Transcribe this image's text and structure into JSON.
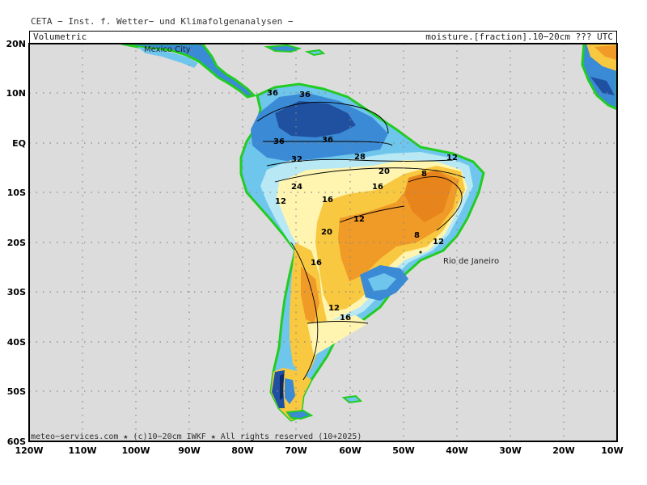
{
  "header": {
    "title": "CETA − Inst. f. Wetter− und Klimafolgenanalysen −",
    "left_label": "Volumetric",
    "right_label": "moisture.[fraction].10−20cm ??? UTC"
  },
  "axes": {
    "lat_ticks": [
      "20N",
      "10N",
      "EQ",
      "10S",
      "20S",
      "30S",
      "40S",
      "50S",
      "60S"
    ],
    "lon_ticks": [
      "120W",
      "110W",
      "100W",
      "90W",
      "80W",
      "70W",
      "60W",
      "50W",
      "40W",
      "30W",
      "20W",
      "10W"
    ]
  },
  "places": {
    "mexico_city": "Mexico City",
    "rio": "Rio de Janeiro"
  },
  "contour_labels": [
    "36",
    "36",
    "36",
    "36",
    "28",
    "32",
    "24",
    "20",
    "16",
    "16",
    "12",
    "8",
    "12",
    "12",
    "20",
    "16",
    "12",
    "16",
    "12",
    "8"
  ],
  "footer": "meteo−services.com ★ (c)10−20cm IWKF ★ All rights reserved (10+2025)",
  "colors": {
    "ocean": "#dcdcdc",
    "border_green": "#22cc22",
    "wet_dark": "#2050a0",
    "wet": "#3a8ad6",
    "moist": "#6fc6ec",
    "medium": "#b8e8f4",
    "dryish": "#fff5b0",
    "dry": "#f8c840",
    "very_dry": "#f09a28"
  }
}
